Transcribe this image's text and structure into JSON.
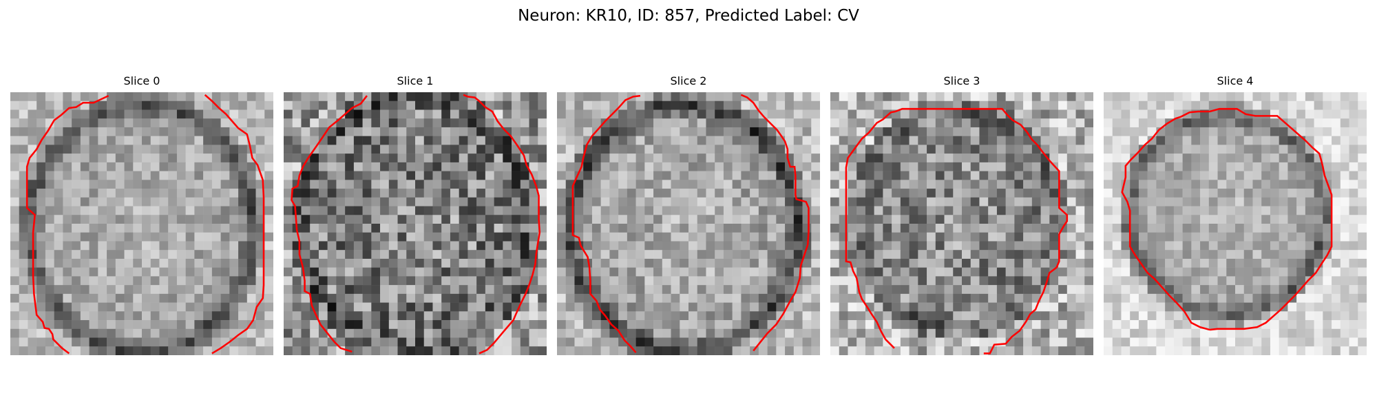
{
  "figure": {
    "title": "Neuron: KR10, ID: 857, Predicted Label: CV"
  },
  "panels": [
    {
      "title": "Slice 0"
    },
    {
      "title": "Slice 1"
    },
    {
      "title": "Slice 2"
    },
    {
      "title": "Slice 3"
    },
    {
      "title": "Slice 4"
    }
  ],
  "colors": {
    "contour": "#ff0000",
    "background": "#ffffff"
  }
}
